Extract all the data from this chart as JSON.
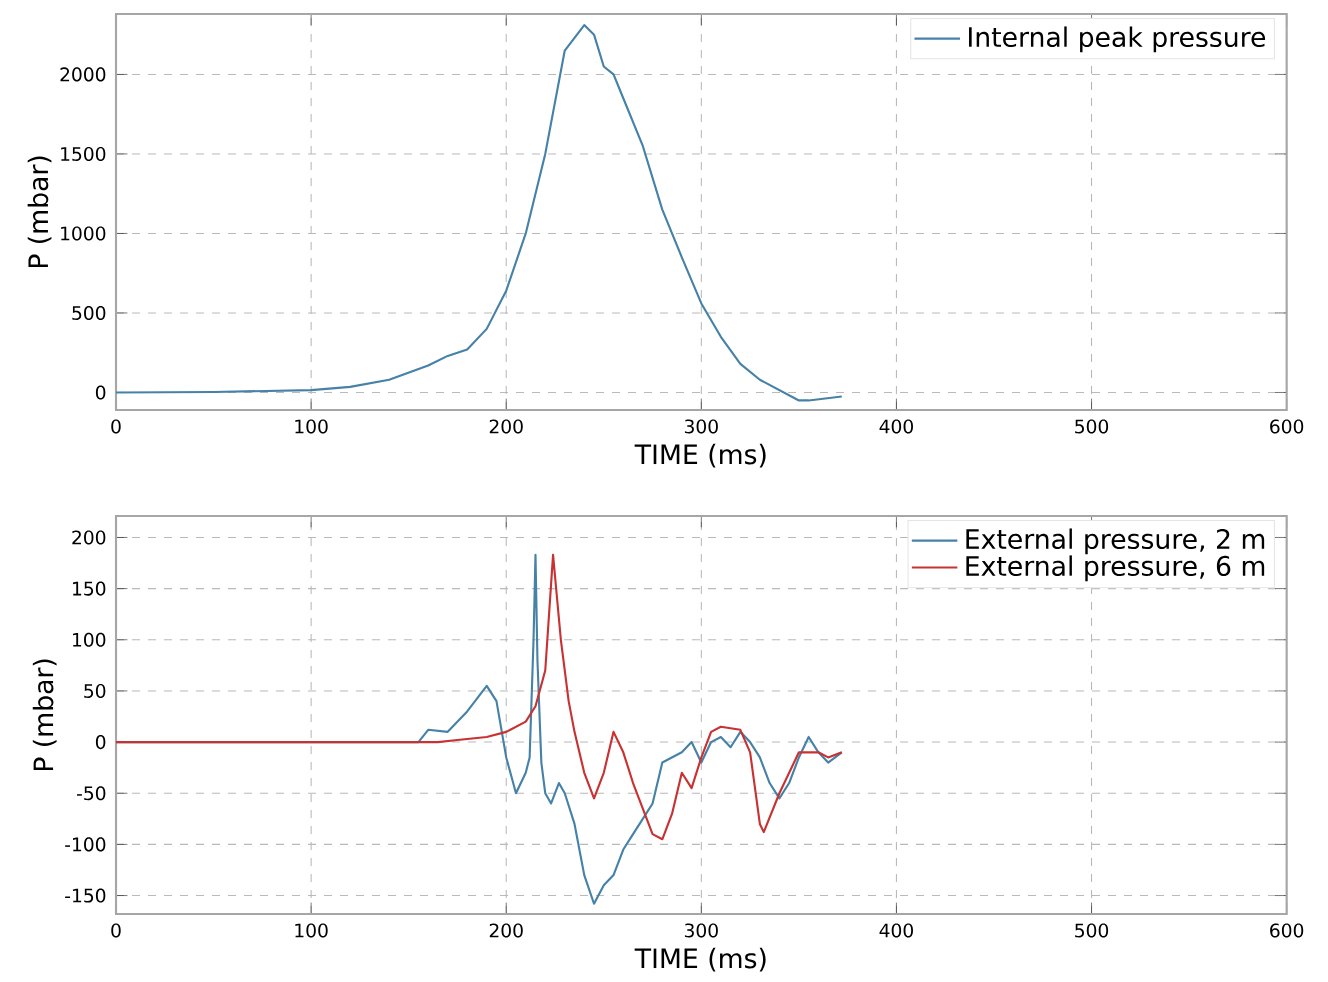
{
  "chart_data": [
    {
      "type": "line",
      "xlabel": "TIME (ms)",
      "ylabel": "P (mbar)",
      "xlim": [
        0,
        600
      ],
      "ylim": [
        -110,
        2380
      ],
      "xticks": [
        0,
        100,
        200,
        300,
        400,
        500,
        600
      ],
      "yticks": [
        0,
        500,
        1000,
        1500,
        2000
      ],
      "grid": true,
      "legend": "top right",
      "series": [
        {
          "name": "Internal peak pressure",
          "color": "#4682a8",
          "x": [
            0,
            50,
            100,
            120,
            140,
            160,
            170,
            180,
            190,
            200,
            210,
            220,
            230,
            235,
            240,
            245,
            250,
            255,
            260,
            270,
            280,
            290,
            300,
            310,
            320,
            330,
            340,
            350,
            355,
            372
          ],
          "values": [
            0,
            3,
            15,
            35,
            80,
            170,
            230,
            270,
            400,
            640,
            1000,
            1500,
            2150,
            2230,
            2310,
            2250,
            2050,
            2000,
            1850,
            1550,
            1150,
            850,
            560,
            350,
            180,
            80,
            15,
            -50,
            -50,
            -25
          ]
        }
      ]
    },
    {
      "type": "line",
      "xlabel": "TIME (ms)",
      "ylabel": "P (mbar)",
      "xlim": [
        0,
        600
      ],
      "ylim": [
        -168,
        221
      ],
      "xticks": [
        0,
        100,
        200,
        300,
        400,
        500,
        600
      ],
      "yticks": [
        -150,
        -100,
        -50,
        0,
        50,
        100,
        150,
        200
      ],
      "grid": true,
      "legend": "top right",
      "series": [
        {
          "name": "External pressure, 2 m",
          "color": "#4682a8",
          "x": [
            0,
            155,
            160,
            170,
            180,
            190,
            195,
            200,
            205,
            210,
            212,
            214,
            215,
            216,
            218,
            220,
            223,
            227,
            230,
            235,
            240,
            245,
            250,
            255,
            260,
            265,
            270,
            275,
            280,
            285,
            290,
            295,
            300,
            305,
            310,
            315,
            320,
            325,
            330,
            335,
            340,
            345,
            350,
            355,
            360,
            365,
            372
          ],
          "values": [
            0,
            0,
            12,
            10,
            30,
            55,
            40,
            -15,
            -50,
            -30,
            -15,
            100,
            183,
            80,
            -20,
            -50,
            -60,
            -40,
            -50,
            -80,
            -130,
            -158,
            -140,
            -130,
            -105,
            -90,
            -75,
            -60,
            -20,
            -15,
            -10,
            0,
            -20,
            0,
            5,
            -5,
            10,
            0,
            -15,
            -40,
            -55,
            -40,
            -15,
            5,
            -10,
            -20,
            -10
          ]
        },
        {
          "name": "External pressure, 6 m",
          "color": "#c83232",
          "x": [
            0,
            165,
            175,
            190,
            200,
            210,
            215,
            220,
            224,
            228,
            230,
            232,
            235,
            240,
            245,
            250,
            255,
            260,
            265,
            270,
            275,
            280,
            285,
            290,
            295,
            300,
            305,
            310,
            320,
            325,
            330,
            332,
            340,
            345,
            350,
            360,
            365,
            372
          ],
          "values": [
            0,
            0,
            2,
            5,
            10,
            20,
            35,
            70,
            183,
            100,
            70,
            40,
            10,
            -30,
            -55,
            -30,
            10,
            -10,
            -40,
            -65,
            -90,
            -95,
            -70,
            -30,
            -45,
            -15,
            10,
            15,
            12,
            -10,
            -80,
            -88,
            -50,
            -30,
            -10,
            -10,
            -15,
            -10
          ]
        }
      ]
    }
  ]
}
